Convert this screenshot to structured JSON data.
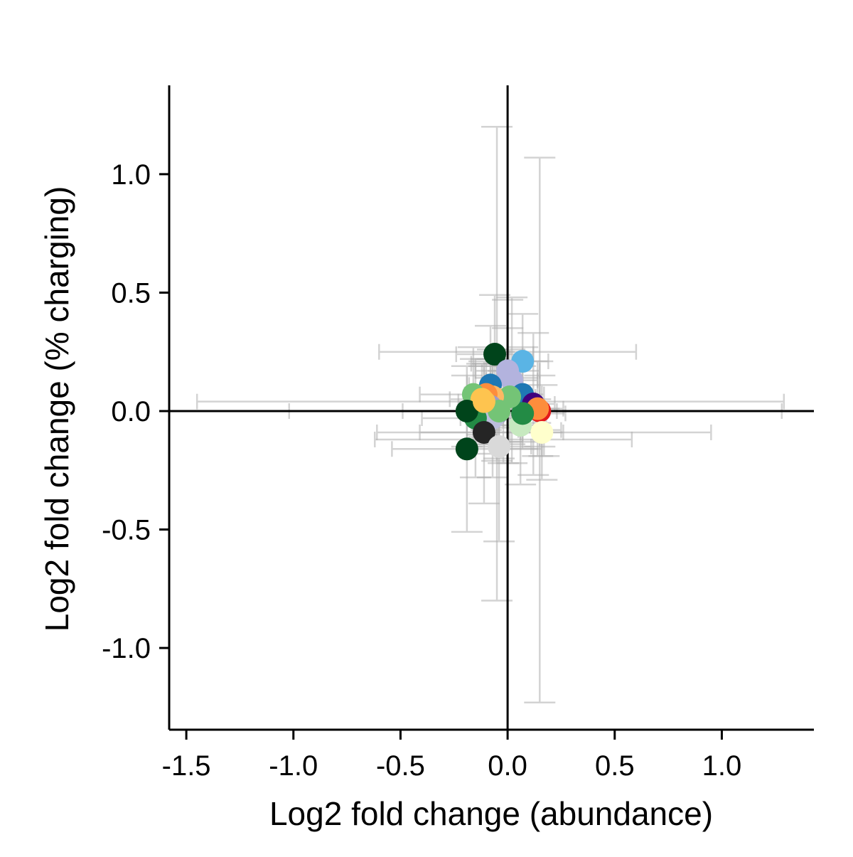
{
  "chart_data": {
    "type": "scatter",
    "title": "",
    "xlabel": "Log2 fold change (abundance)",
    "ylabel": "Log2 fold change (% charging)",
    "xlim": [
      -1.58,
      1.43
    ],
    "ylim": [
      -1.345,
      1.375
    ],
    "xticks": [
      -1.5,
      -1.0,
      -0.5,
      0.0,
      0.5,
      1.0
    ],
    "xtick_labels": [
      "-1.5",
      "-1.0",
      "-0.5",
      "0.0",
      "0.5",
      "1.0"
    ],
    "yticks": [
      -1.0,
      -0.5,
      0.0,
      0.5,
      1.0
    ],
    "ytick_labels": [
      "-1.0",
      "-0.5",
      "0.0",
      "0.5",
      "1.0"
    ],
    "reference_lines": {
      "x": 0,
      "y": 0
    },
    "grid": false,
    "legend": "none",
    "error_bar_color": "#b0b0b0",
    "points": [
      {
        "x": -0.06,
        "y": 0.24,
        "xerr": 0.18,
        "yerr": 0.25,
        "color": "#00441b"
      },
      {
        "x": 0.07,
        "y": 0.21,
        "xerr": 0.12,
        "yerr": 0.2,
        "color": "#5ab4e5"
      },
      {
        "x": 0.0,
        "y": 0.17,
        "xerr": 0.15,
        "yerr": 0.3,
        "color": "#b3b3de"
      },
      {
        "x": 0.02,
        "y": 0.13,
        "xerr": 0.12,
        "yerr": 0.35,
        "color": "#b3b3de"
      },
      {
        "x": -0.08,
        "y": 0.11,
        "xerr": 0.1,
        "yerr": 0.25,
        "color": "#1f78b4"
      },
      {
        "x": 0.07,
        "y": 0.07,
        "xerr": 0.1,
        "yerr": 0.2,
        "color": "#1f78b4"
      },
      {
        "x": 0.12,
        "y": 0.03,
        "xerr": 0.1,
        "yerr": 0.3,
        "color": "#3f007d"
      },
      {
        "x": 0.15,
        "y": 0.0,
        "xerr": 0.08,
        "yerr": 0.15,
        "color": "#e31a1c"
      },
      {
        "x": 0.14,
        "y": 0.01,
        "xerr": 0.12,
        "yerr": 0.2,
        "color": "#fd8d3c"
      },
      {
        "x": 0.16,
        "y": -0.09,
        "xerr": 0.1,
        "yerr": 0.2,
        "color": "#ffffcc"
      },
      {
        "x": 0.06,
        "y": -0.06,
        "xerr": 0.12,
        "yerr": 0.25,
        "color": "#c7e9c0"
      },
      {
        "x": 0.07,
        "y": -0.01,
        "xerr": 0.2,
        "yerr": 0.15,
        "color": "#238b45"
      },
      {
        "x": -0.02,
        "y": 0.05,
        "xerr": 0.15,
        "yerr": 0.12,
        "color": "#fdd49e"
      },
      {
        "x": 0.01,
        "y": 0.06,
        "xerr": 0.12,
        "yerr": 0.2,
        "color": "#74c476"
      },
      {
        "x": -0.07,
        "y": 0.06,
        "xerr": 0.1,
        "yerr": 0.2,
        "color": "#fdb863"
      },
      {
        "x": -0.1,
        "y": 0.07,
        "xerr": 0.1,
        "yerr": 0.15,
        "color": "#fd8d3c"
      },
      {
        "x": -0.16,
        "y": 0.07,
        "xerr": 0.25,
        "yerr": 0.2,
        "color": "#74c476"
      },
      {
        "x": -0.12,
        "y": 0.05,
        "xerr": 0.15,
        "yerr": 0.15,
        "color": "#fec44f"
      },
      {
        "x": -0.08,
        "y": 0.02,
        "xerr": 0.12,
        "yerr": 0.2,
        "color": "#9e9ac8"
      },
      {
        "x": -0.05,
        "y": -0.01,
        "xerr": 0.12,
        "yerr": 0.2,
        "color": "#9e9ac8"
      },
      {
        "x": -0.07,
        "y": -0.03,
        "xerr": 0.15,
        "yerr": 0.25,
        "color": "#bcbddc"
      },
      {
        "x": -0.04,
        "y": 0.0,
        "xerr": 0.12,
        "yerr": 0.2,
        "color": "#74c476"
      },
      {
        "x": -0.15,
        "y": -0.03,
        "xerr": 0.25,
        "yerr": 0.25,
        "color": "#238b45"
      },
      {
        "x": -0.19,
        "y": 0.0,
        "xerr": 0.3,
        "yerr": 0.15,
        "color": "#00441b"
      },
      {
        "x": -0.11,
        "y": 0.04,
        "xerr": 0.12,
        "yerr": 0.15,
        "color": "#fec44f"
      },
      {
        "x": -0.11,
        "y": -0.09,
        "xerr": 0.3,
        "yerr": 0.3,
        "color": "#252525"
      },
      {
        "x": -0.04,
        "y": -0.15,
        "xerr": 0.15,
        "yerr": 0.4,
        "color": "#d9d9d9"
      },
      {
        "x": -0.19,
        "y": -0.16,
        "xerr": 0.35,
        "yerr": 0.35,
        "color": "#00441b"
      },
      {
        "x": -0.05,
        "y": 0.2,
        "xerr": 0.12,
        "yerr": 1.0,
        "color": "#00441b"
      },
      {
        "x": 0.15,
        "y": -0.08,
        "xerr": 0.1,
        "yerr": 1.15,
        "color": "#ffffcc"
      },
      {
        "x": -0.08,
        "y": 0.04,
        "xerr": 1.37,
        "yerr": 0.1,
        "color": "#fec44f"
      },
      {
        "x": 0.13,
        "y": 0.0,
        "xerr": 1.15,
        "yerr": 0.05,
        "color": "#fd8d3c"
      },
      {
        "x": 0.17,
        "y": -0.09,
        "xerr": 0.78,
        "yerr": 0.1,
        "color": "#ffffcc"
      },
      {
        "x": 0.0,
        "y": 0.25,
        "xerr": 0.6,
        "yerr": 0.1,
        "color": "#b3b3de"
      },
      {
        "x": -0.02,
        "y": -0.12,
        "xerr": 0.6,
        "yerr": 0.1,
        "color": "#d9d9d9"
      }
    ]
  }
}
